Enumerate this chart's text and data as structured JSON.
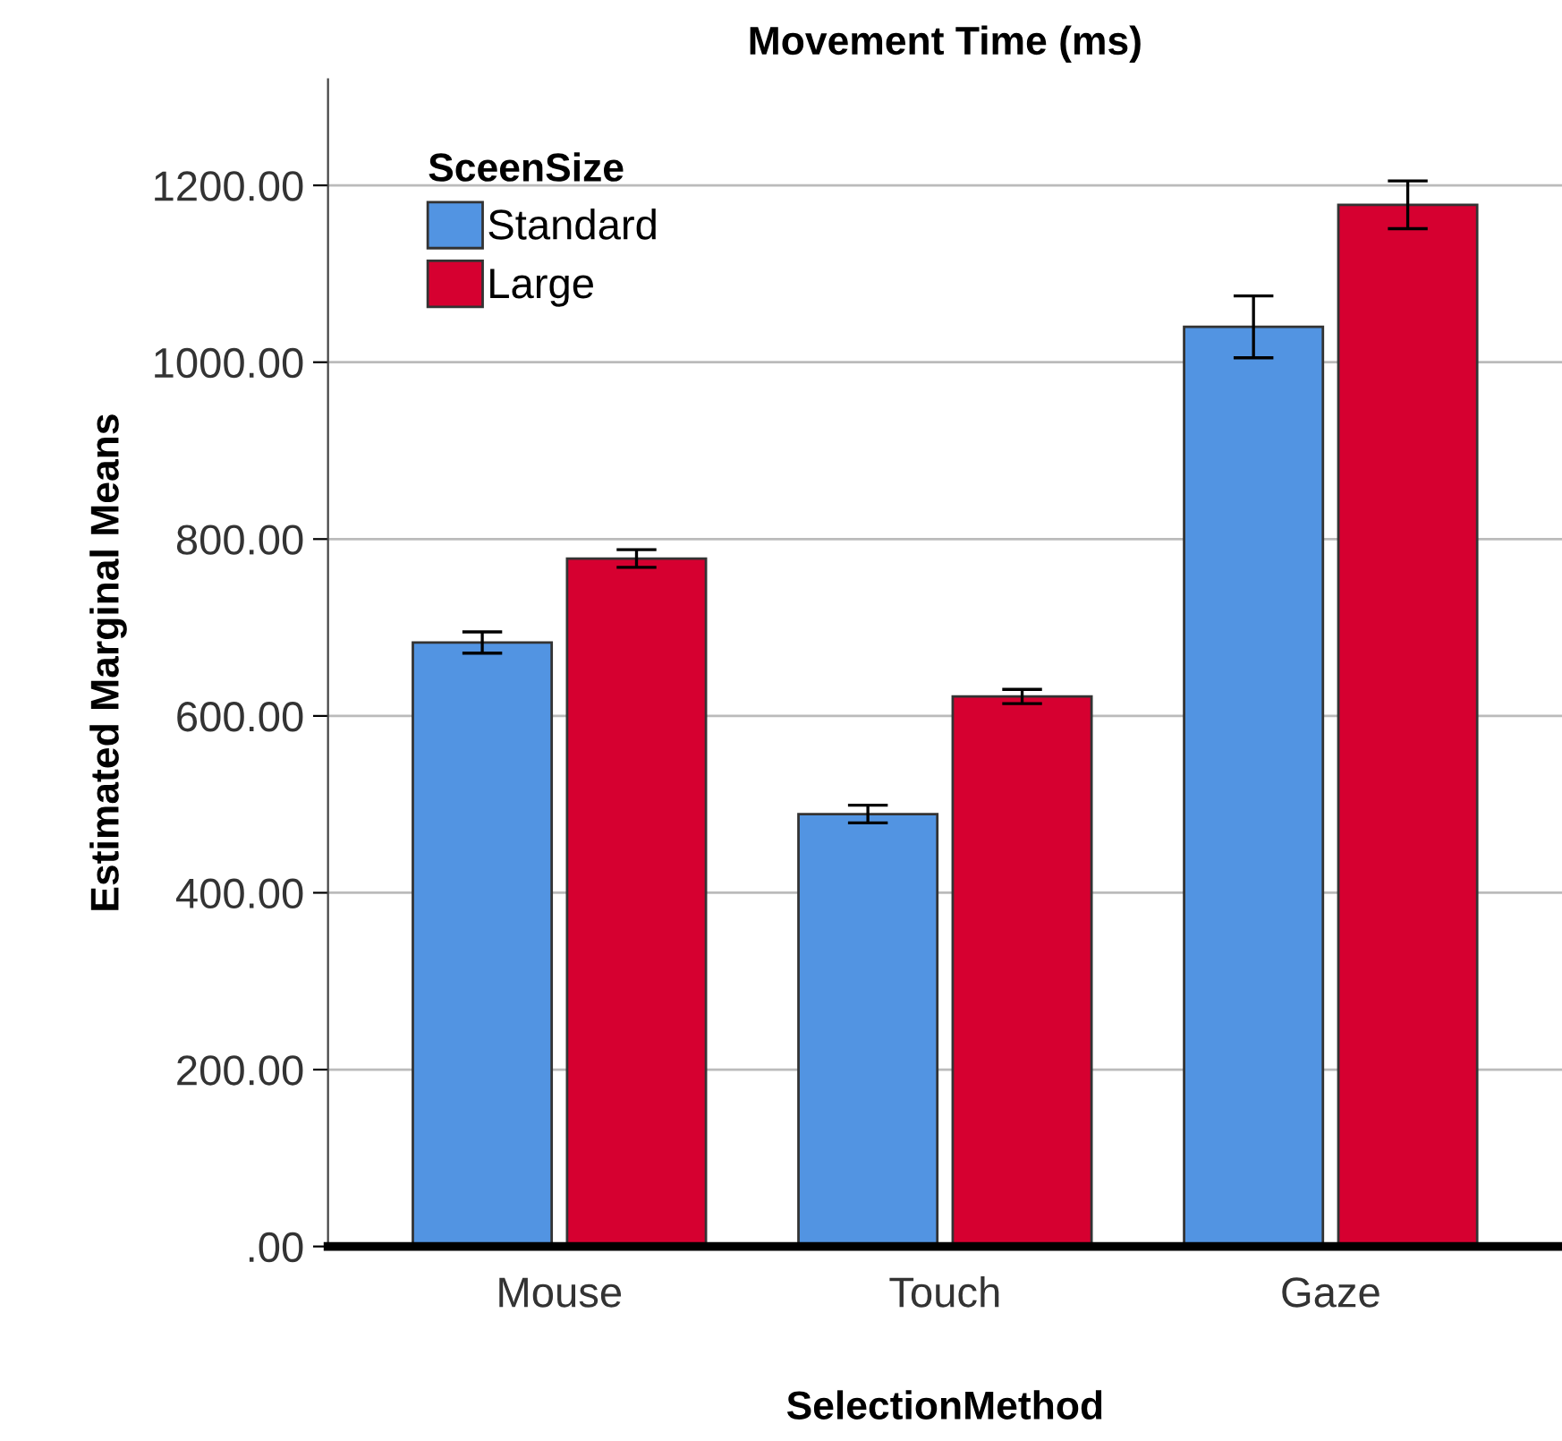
{
  "chart_data": {
    "type": "bar",
    "title": "Movement Time (ms)",
    "xlabel": "SelectionMethod",
    "ylabel": "Estimated Marginal Means",
    "legend_title": "SceenSize",
    "categories": [
      "Mouse",
      "Touch",
      "Gaze"
    ],
    "series": [
      {
        "name": "Standard",
        "color": "#5294e2",
        "values": [
          683,
          489,
          1040
        ],
        "errors": [
          12,
          10,
          35
        ]
      },
      {
        "name": "Large",
        "color": "#d60030",
        "values": [
          778,
          622,
          1178
        ],
        "errors": [
          10,
          8,
          27
        ]
      }
    ],
    "ylim": [
      0,
      1320
    ],
    "yticks": [
      {
        "value": 0,
        "label": ".00"
      },
      {
        "value": 200,
        "label": "200.00"
      },
      {
        "value": 400,
        "label": "400.00"
      },
      {
        "value": 600,
        "label": "600.00"
      },
      {
        "value": 800,
        "label": "800.00"
      },
      {
        "value": 1000,
        "label": "1000.00"
      },
      {
        "value": 1200,
        "label": "1200.00"
      }
    ],
    "grid": "y",
    "legend": "top left"
  }
}
